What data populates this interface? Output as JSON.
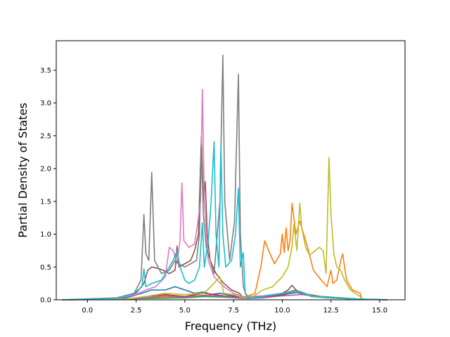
{
  "chart_data": {
    "type": "line",
    "title": "",
    "xlabel": "Frequency (THz)",
    "ylabel": "Partial Density of States",
    "xlim": [
      -1.6,
      16.3
    ],
    "ylim": [
      0,
      3.95
    ],
    "xticks": [
      0.0,
      2.5,
      5.0,
      7.5,
      10.0,
      12.5,
      15.0
    ],
    "xtick_labels": [
      "0.0",
      "2.5",
      "5.0",
      "7.5",
      "10.0",
      "12.5",
      "15.0"
    ],
    "yticks": [
      0.0,
      0.5,
      1.0,
      1.5,
      2.0,
      2.5,
      3.0,
      3.5
    ],
    "ytick_labels": [
      "0.0",
      "0.5",
      "1.0",
      "1.5",
      "2.0",
      "2.5",
      "3.0",
      "3.5"
    ],
    "grid": false,
    "legend": "none",
    "series": [
      {
        "color": "#1f77b4",
        "points": [
          [
            -1.3,
            0
          ],
          [
            0.5,
            0.005
          ],
          [
            2.0,
            0.03
          ],
          [
            2.8,
            0.1
          ],
          [
            3.3,
            0.15
          ],
          [
            4.0,
            0.15
          ],
          [
            4.5,
            0.2
          ],
          [
            5.0,
            0.15
          ],
          [
            5.5,
            0.1
          ],
          [
            6.0,
            0.12
          ],
          [
            6.3,
            0.08
          ],
          [
            6.8,
            0.1
          ],
          [
            7.3,
            0.07
          ],
          [
            7.8,
            0.05
          ],
          [
            8.2,
            0.02
          ],
          [
            9.0,
            0.03
          ],
          [
            10.0,
            0.08
          ],
          [
            10.5,
            0.1
          ],
          [
            11.0,
            0.12
          ],
          [
            11.5,
            0.05
          ],
          [
            12.3,
            0.03
          ],
          [
            13.0,
            0.02
          ],
          [
            14.0,
            0.01
          ],
          [
            15.4,
            0
          ]
        ]
      },
      {
        "color": "#ff7f0e",
        "points": [
          [
            -1.3,
            0
          ],
          [
            2.0,
            0.01
          ],
          [
            3.0,
            0.03
          ],
          [
            5.0,
            0.05
          ],
          [
            6.0,
            0.06
          ],
          [
            7.0,
            0.05
          ],
          [
            8.0,
            0.03
          ],
          [
            8.6,
            0.1
          ],
          [
            8.9,
            0.5
          ],
          [
            9.1,
            0.9
          ],
          [
            9.3,
            0.75
          ],
          [
            9.6,
            0.55
          ],
          [
            9.9,
            0.7
          ],
          [
            10.0,
            1.0
          ],
          [
            10.1,
            0.72
          ],
          [
            10.2,
            1.1
          ],
          [
            10.3,
            0.75
          ],
          [
            10.4,
            0.9
          ],
          [
            10.5,
            1.47
          ],
          [
            10.7,
            1.0
          ],
          [
            10.9,
            1.2
          ],
          [
            11.1,
            1.0
          ],
          [
            11.3,
            0.8
          ],
          [
            11.6,
            0.45
          ],
          [
            12.0,
            0.3
          ],
          [
            12.3,
            0.2
          ],
          [
            12.5,
            0.45
          ],
          [
            12.6,
            0.25
          ],
          [
            12.8,
            0.3
          ],
          [
            13.0,
            0.6
          ],
          [
            13.1,
            0.7
          ],
          [
            13.3,
            0.3
          ],
          [
            13.6,
            0.15
          ],
          [
            14.0,
            0.1
          ],
          [
            14.1,
            0
          ]
        ]
      },
      {
        "color": "#2ca02c",
        "points": [
          [
            -1.3,
            0
          ],
          [
            2.0,
            0.01
          ],
          [
            3.0,
            0.02
          ],
          [
            5.0,
            0.03
          ],
          [
            6.0,
            0.05
          ],
          [
            7.0,
            0.04
          ],
          [
            8.0,
            0.02
          ],
          [
            9.0,
            0.05
          ],
          [
            10.0,
            0.1
          ],
          [
            10.7,
            0.15
          ],
          [
            11.0,
            0.1
          ],
          [
            12.0,
            0.05
          ],
          [
            13.0,
            0.03
          ],
          [
            14.0,
            0.01
          ],
          [
            15.4,
            0
          ]
        ]
      },
      {
        "color": "#d62728",
        "points": [
          [
            -1.3,
            0
          ],
          [
            2.0,
            0.01
          ],
          [
            3.0,
            0.05
          ],
          [
            4.0,
            0.08
          ],
          [
            5.0,
            0.05
          ],
          [
            6.0,
            0.1
          ],
          [
            6.5,
            0.08
          ],
          [
            7.0,
            0.06
          ],
          [
            8.0,
            0.03
          ],
          [
            9.0,
            0.04
          ],
          [
            10.0,
            0.07
          ],
          [
            10.6,
            0.12
          ],
          [
            11.2,
            0.08
          ],
          [
            12.0,
            0.04
          ],
          [
            13.0,
            0.02
          ],
          [
            14.0,
            0.01
          ],
          [
            15.4,
            0
          ]
        ]
      },
      {
        "color": "#9467bd",
        "points": [
          [
            -1.3,
            0
          ],
          [
            2.0,
            0.005
          ],
          [
            3.0,
            0.03
          ],
          [
            4.0,
            0.06
          ],
          [
            5.0,
            0.04
          ],
          [
            6.0,
            0.07
          ],
          [
            7.0,
            0.05
          ],
          [
            8.0,
            0.02
          ],
          [
            9.0,
            0.03
          ],
          [
            10.0,
            0.06
          ],
          [
            11.0,
            0.08
          ],
          [
            12.0,
            0.04
          ],
          [
            13.0,
            0.02
          ],
          [
            15.4,
            0
          ]
        ]
      },
      {
        "color": "#8c564b",
        "points": [
          [
            -1.3,
            0
          ],
          [
            1.5,
            0.02
          ],
          [
            2.5,
            0.1
          ],
          [
            2.9,
            0.25
          ],
          [
            3.1,
            0.45
          ],
          [
            3.3,
            0.5
          ],
          [
            3.6,
            0.48
          ],
          [
            3.9,
            0.45
          ],
          [
            4.2,
            0.4
          ],
          [
            4.5,
            0.45
          ],
          [
            4.6,
            0.82
          ],
          [
            4.7,
            0.5
          ],
          [
            5.0,
            0.55
          ],
          [
            5.3,
            0.6
          ],
          [
            5.5,
            0.75
          ],
          [
            5.7,
            1.0
          ],
          [
            5.85,
            2.5
          ],
          [
            5.95,
            1.5
          ],
          [
            6.05,
            1.8
          ],
          [
            6.15,
            1.0
          ],
          [
            6.3,
            0.6
          ],
          [
            6.6,
            0.4
          ],
          [
            7.0,
            0.25
          ],
          [
            7.4,
            0.15
          ],
          [
            7.8,
            0.1
          ],
          [
            8.0,
            0.03
          ],
          [
            9.0,
            0.05
          ],
          [
            10.0,
            0.1
          ],
          [
            10.3,
            0.15
          ],
          [
            10.5,
            0.22
          ],
          [
            10.8,
            0.12
          ],
          [
            11.5,
            0.06
          ],
          [
            12.5,
            0.03
          ],
          [
            14.0,
            0.01
          ],
          [
            15.4,
            0
          ]
        ]
      },
      {
        "color": "#e377c2",
        "points": [
          [
            -1.3,
            0
          ],
          [
            1.5,
            0.02
          ],
          [
            2.5,
            0.08
          ],
          [
            3.0,
            0.15
          ],
          [
            3.5,
            0.2
          ],
          [
            4.0,
            0.35
          ],
          [
            4.2,
            0.8
          ],
          [
            4.4,
            0.75
          ],
          [
            4.6,
            0.55
          ],
          [
            4.75,
            0.9
          ],
          [
            4.85,
            1.78
          ],
          [
            4.95,
            0.9
          ],
          [
            5.2,
            0.8
          ],
          [
            5.5,
            0.85
          ],
          [
            5.65,
            1.15
          ],
          [
            5.8,
            1.5
          ],
          [
            5.9,
            3.21
          ],
          [
            6.0,
            1.5
          ],
          [
            6.2,
            0.6
          ],
          [
            6.5,
            0.35
          ],
          [
            7.0,
            0.2
          ],
          [
            7.5,
            0.1
          ],
          [
            8.0,
            0.05
          ],
          [
            9.0,
            0.06
          ],
          [
            10.0,
            0.1
          ],
          [
            10.5,
            0.13
          ],
          [
            11.0,
            0.12
          ],
          [
            11.5,
            0.06
          ],
          [
            12.5,
            0.03
          ],
          [
            14.0,
            0.01
          ],
          [
            15.4,
            0
          ]
        ]
      },
      {
        "color": "#7f7f7f",
        "points": [
          [
            -1.3,
            0
          ],
          [
            1.5,
            0.03
          ],
          [
            2.4,
            0.1
          ],
          [
            2.75,
            0.3
          ],
          [
            2.9,
            1.3
          ],
          [
            3.0,
            0.7
          ],
          [
            3.15,
            0.6
          ],
          [
            3.3,
            1.94
          ],
          [
            3.45,
            0.6
          ],
          [
            3.8,
            0.4
          ],
          [
            4.2,
            0.45
          ],
          [
            4.5,
            0.6
          ],
          [
            4.7,
            0.55
          ],
          [
            5.0,
            0.5
          ],
          [
            5.3,
            0.55
          ],
          [
            5.6,
            0.6
          ],
          [
            5.75,
            1.0
          ],
          [
            5.85,
            2.35
          ],
          [
            5.95,
            1.3
          ],
          [
            6.1,
            0.8
          ],
          [
            6.3,
            0.6
          ],
          [
            6.5,
            0.4
          ],
          [
            6.8,
            1.5
          ],
          [
            6.95,
            3.73
          ],
          [
            7.05,
            1.5
          ],
          [
            7.3,
            0.6
          ],
          [
            7.55,
            1.2
          ],
          [
            7.75,
            3.44
          ],
          [
            7.85,
            1.0
          ],
          [
            8.0,
            0.2
          ],
          [
            8.2,
            0.03
          ],
          [
            9.0,
            0.05
          ],
          [
            10.0,
            0.1
          ],
          [
            10.8,
            0.12
          ],
          [
            11.5,
            0.05
          ],
          [
            12.5,
            0.03
          ],
          [
            14.0,
            0.01
          ],
          [
            15.4,
            0
          ]
        ]
      },
      {
        "color": "#bcbd22",
        "points": [
          [
            -1.3,
            0
          ],
          [
            2.0,
            0.01
          ],
          [
            3.0,
            0.05
          ],
          [
            4.0,
            0.1
          ],
          [
            5.0,
            0.08
          ],
          [
            6.0,
            0.1
          ],
          [
            6.8,
            0.35
          ],
          [
            7.0,
            0.1
          ],
          [
            7.5,
            0.08
          ],
          [
            8.0,
            0.03
          ],
          [
            8.5,
            0.05
          ],
          [
            9.0,
            0.15
          ],
          [
            9.5,
            0.2
          ],
          [
            10.0,
            0.35
          ],
          [
            10.3,
            0.5
          ],
          [
            10.5,
            0.8
          ],
          [
            10.6,
            1.15
          ],
          [
            10.75,
            0.75
          ],
          [
            10.9,
            1.47
          ],
          [
            11.0,
            1.1
          ],
          [
            11.2,
            0.8
          ],
          [
            11.4,
            0.68
          ],
          [
            11.7,
            0.75
          ],
          [
            11.9,
            0.8
          ],
          [
            12.1,
            0.75
          ],
          [
            12.25,
            0.4
          ],
          [
            12.3,
            1.0
          ],
          [
            12.4,
            2.17
          ],
          [
            12.5,
            1.3
          ],
          [
            12.65,
            0.7
          ],
          [
            12.8,
            0.5
          ],
          [
            13.0,
            0.45
          ],
          [
            13.2,
            0.3
          ],
          [
            13.5,
            0.15
          ],
          [
            14.0,
            0.05
          ],
          [
            14.1,
            0
          ]
        ]
      },
      {
        "color": "#17becf",
        "points": [
          [
            -1.3,
            0
          ],
          [
            1.5,
            0.02
          ],
          [
            2.4,
            0.1
          ],
          [
            2.8,
            0.2
          ],
          [
            2.9,
            0.47
          ],
          [
            3.0,
            0.2
          ],
          [
            3.3,
            0.25
          ],
          [
            3.8,
            0.3
          ],
          [
            4.2,
            0.5
          ],
          [
            4.4,
            0.6
          ],
          [
            4.6,
            0.75
          ],
          [
            4.75,
            0.5
          ],
          [
            5.0,
            0.3
          ],
          [
            5.2,
            0.25
          ],
          [
            5.5,
            0.3
          ],
          [
            5.75,
            0.5
          ],
          [
            5.9,
            1.17
          ],
          [
            6.0,
            0.5
          ],
          [
            6.2,
            0.9
          ],
          [
            6.35,
            1.5
          ],
          [
            6.5,
            2.41
          ],
          [
            6.6,
            1.0
          ],
          [
            6.75,
            0.5
          ],
          [
            6.85,
            2.35
          ],
          [
            6.95,
            1.0
          ],
          [
            7.1,
            0.5
          ],
          [
            7.4,
            0.6
          ],
          [
            7.6,
            1.0
          ],
          [
            7.75,
            1.7
          ],
          [
            7.85,
            0.5
          ],
          [
            8.0,
            0.72
          ],
          [
            8.1,
            0.1
          ],
          [
            8.3,
            0.03
          ],
          [
            9.0,
            0.05
          ],
          [
            10.0,
            0.1
          ],
          [
            10.9,
            0.13
          ],
          [
            11.5,
            0.05
          ],
          [
            12.5,
            0.03
          ],
          [
            14.0,
            0.01
          ],
          [
            15.4,
            0
          ]
        ]
      }
    ]
  }
}
